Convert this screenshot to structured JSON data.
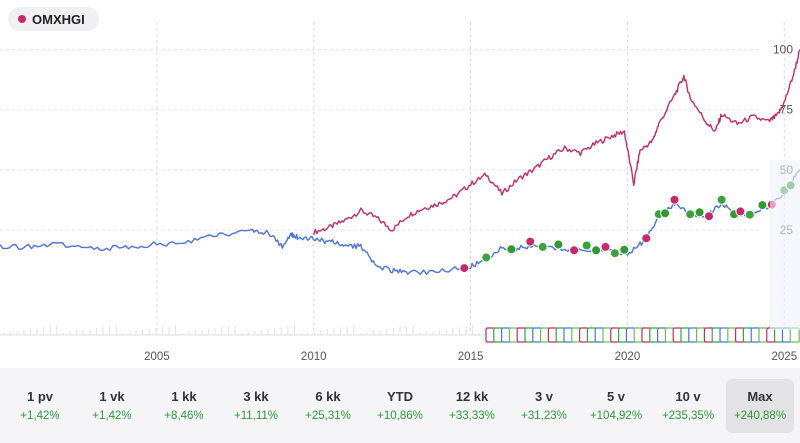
{
  "chip": {
    "label": "OMXHGI",
    "color": "#c72a6b"
  },
  "chart_data": {
    "type": "line",
    "x_ticks": [
      "2005",
      "2010",
      "2015",
      "2020",
      "2025"
    ],
    "y_ticks": [
      "25",
      "50",
      "75",
      "100"
    ],
    "series": [
      {
        "color": "#c72a6b",
        "x": [
          2010.0,
          2010.5,
          2011.0,
          2011.5,
          2012.0,
          2012.5,
          2013.0,
          2013.5,
          2014.0,
          2014.5,
          2015.0,
          2015.5,
          2016.0,
          2016.5,
          2017.0,
          2017.5,
          2018.0,
          2018.5,
          2019.0,
          2019.5,
          2019.9,
          2020.2,
          2020.4,
          2020.8,
          2021.0,
          2021.5,
          2021.8,
          2022.0,
          2022.5,
          2022.8,
          2023.0,
          2023.5,
          2024.0,
          2024.5,
          2024.8,
          2025.0,
          2025.3,
          2025.5
        ],
        "y": [
          24,
          26,
          29,
          33,
          30,
          25,
          31,
          34,
          36,
          39,
          44,
          48,
          40,
          46,
          50,
          55,
          59,
          57,
          61,
          64,
          66,
          44,
          58,
          62,
          69,
          81,
          89,
          80,
          70,
          66,
          73,
          69,
          72,
          70,
          73,
          78,
          90,
          100
        ]
      },
      {
        "color": "#4a74e6",
        "x": [
          2000.0,
          2001.0,
          2002.0,
          2003.0,
          2004.0,
          2005.0,
          2006.0,
          2007.0,
          2008.0,
          2008.5,
          2009.0,
          2009.3,
          2009.5,
          2010.0,
          2010.5,
          2011.0,
          2011.5,
          2012.0,
          2012.5,
          2013.0,
          2014.0,
          2015.0,
          2015.5,
          2016.0,
          2016.5,
          2017.0,
          2018.0,
          2019.0,
          2020.0,
          2020.5,
          2021.0,
          2021.5,
          2022.0,
          2022.5,
          2023.0,
          2023.5,
          2024.0,
          2024.5,
          2025.0,
          2025.5
        ],
        "y": [
          18,
          18,
          19,
          17,
          18,
          19,
          20,
          23,
          25,
          24,
          18,
          23,
          22,
          21,
          20,
          19,
          18,
          10,
          8,
          7,
          8,
          10,
          12,
          18,
          17,
          19,
          17,
          17,
          15,
          20,
          30,
          36,
          32,
          30,
          36,
          31,
          32,
          35,
          40,
          50
        ]
      }
    ],
    "y_range": [
      -15,
      104
    ],
    "x_range": [
      2000,
      2025.5
    ],
    "grid": true
  },
  "periods": [
    {
      "label": "1 pv",
      "change": "+1,42%"
    },
    {
      "label": "1 vk",
      "change": "+1,42%"
    },
    {
      "label": "1 kk",
      "change": "+8,46%"
    },
    {
      "label": "3 kk",
      "change": "+11,11%"
    },
    {
      "label": "6 kk",
      "change": "+25,31%"
    },
    {
      "label": "YTD",
      "change": "+10,86%"
    },
    {
      "label": "12 kk",
      "change": "+33,33%"
    },
    {
      "label": "3 v",
      "change": "+31,23%"
    },
    {
      "label": "5 v",
      "change": "+104,92%"
    },
    {
      "label": "10 v",
      "change": "+235,35%"
    },
    {
      "label": "Max",
      "change": "+240,88%"
    }
  ],
  "active_period": "Max"
}
